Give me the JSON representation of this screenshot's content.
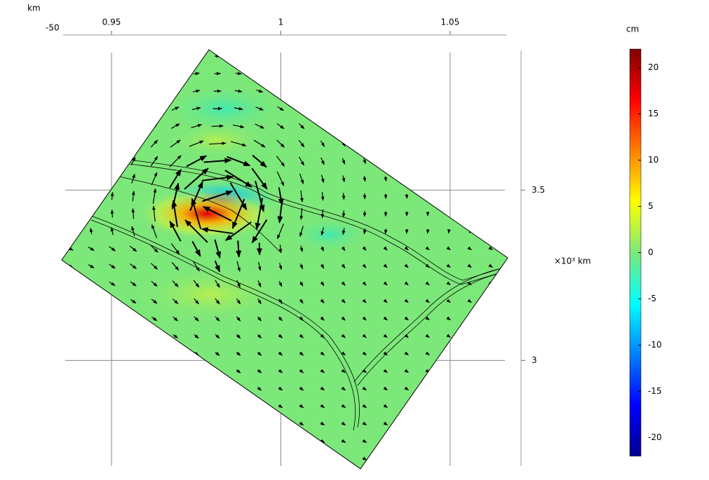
{
  "chart_data": {
    "type": "heatmap",
    "x_unit": "km",
    "x_label_fragment": "-50",
    "xlim": [
      0.9357,
      1.0666
    ],
    "xticks": [
      0.95,
      1,
      1.05
    ],
    "ylim": [
      2.69,
      3.91
    ],
    "yticks": [
      3.5,
      3
    ],
    "y_label": "×10³ km",
    "colorbar_title": "cm",
    "clim": [
      -22,
      22
    ],
    "colorbar_ticks": [
      20,
      15,
      10,
      5,
      0,
      -5,
      -10,
      -15,
      -20
    ],
    "colormap": "jet",
    "grid": true
  }
}
